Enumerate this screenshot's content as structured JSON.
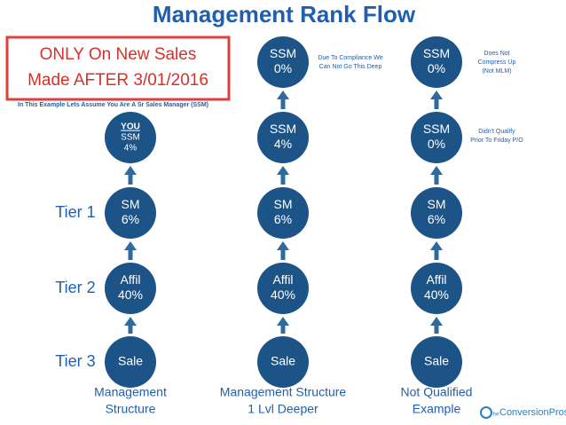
{
  "title": "Management Rank Flow",
  "notice": [
    "ONLY On New Sales",
    "Made AFTER 3/01/2016"
  ],
  "assumption": "In This Example Lets Assume You Are A Sr Sales Manager (SSM)",
  "tiers": [
    "Tier 1",
    "Tier 2",
    "Tier 3"
  ],
  "columns": [
    {
      "nodes": [
        {
          "lines": [
            "YOU",
            "SSM",
            "4%"
          ]
        },
        {
          "lines": [
            "SM",
            "6%"
          ]
        },
        {
          "lines": [
            "Affil",
            "40%"
          ]
        },
        {
          "lines": [
            "Sale"
          ]
        }
      ],
      "caption": [
        "Management",
        "Structure"
      ]
    },
    {
      "nodes": [
        {
          "lines": [
            "SSM",
            "0%"
          ]
        },
        {
          "lines": [
            "SSM",
            "4%"
          ]
        },
        {
          "lines": [
            "SM",
            "6%"
          ]
        },
        {
          "lines": [
            "Affil",
            "40%"
          ]
        },
        {
          "lines": [
            "Sale"
          ]
        }
      ],
      "caption": [
        "Management Structure",
        "1 Lvl Deeper"
      ]
    },
    {
      "nodes": [
        {
          "lines": [
            "SSM",
            "0%"
          ]
        },
        {
          "lines": [
            "SSM",
            "0%"
          ]
        },
        {
          "lines": [
            "SM",
            "6%"
          ]
        },
        {
          "lines": [
            "Affil",
            "40%"
          ]
        },
        {
          "lines": [
            "Sale"
          ]
        }
      ],
      "caption": [
        "Not Qualified",
        "Example"
      ]
    }
  ],
  "notes": [
    {
      "lines": [
        "Due To Compliance We",
        "Can Not Go This Deep"
      ]
    },
    {
      "lines": [
        "Does Not",
        "Compress Up",
        "(Not MLM)"
      ]
    },
    {
      "lines": [
        "Didn't Qualify",
        "Prior To Friday P/O"
      ]
    }
  ],
  "logo": {
    "small": "The",
    "name": "ConversionPros"
  }
}
